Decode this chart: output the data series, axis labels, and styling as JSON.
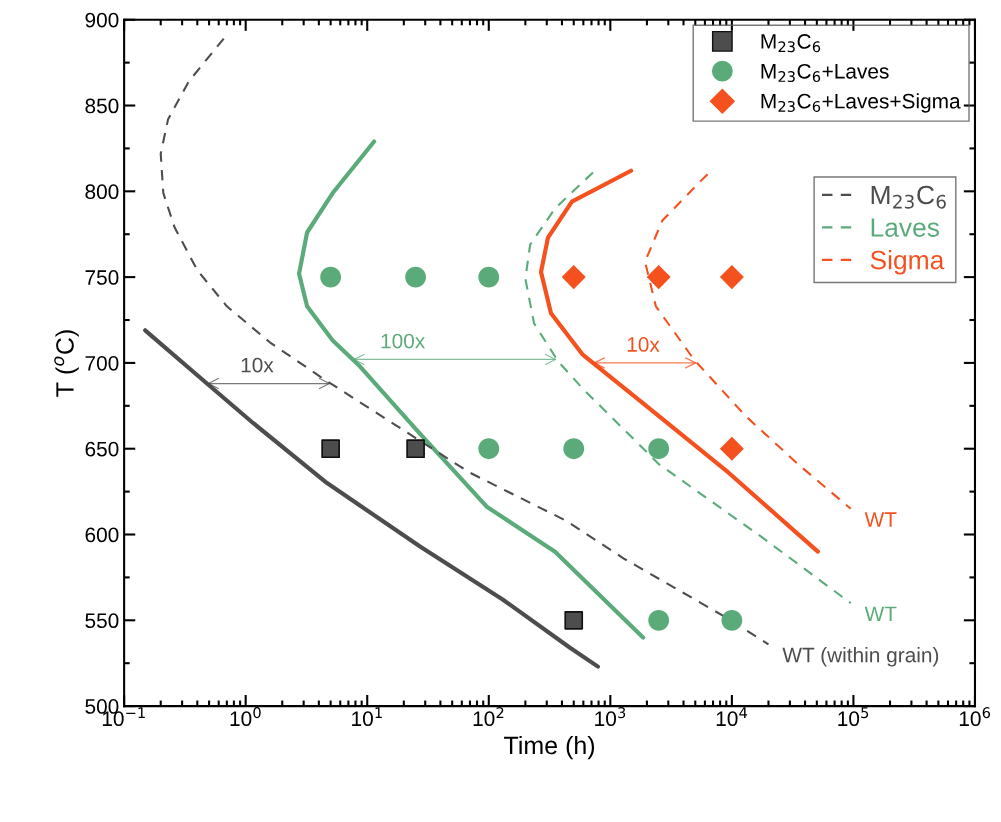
{
  "chart_data": {
    "type": "line",
    "xlabel": "Time (h)",
    "ylabel": "T ($^{o}$C)",
    "log": "x",
    "xlim": [
      0.1,
      1000000
    ],
    "xticks": [
      {
        "value": 0.1,
        "label": "10$^{−1}$"
      },
      {
        "value": 1,
        "label": "10$^{0}$"
      },
      {
        "value": 10,
        "label": "10$^{1}$"
      },
      {
        "value": 100,
        "label": "10$^{2}$"
      },
      {
        "value": 1000,
        "label": "10$^{3}$"
      },
      {
        "value": 10000,
        "label": "10$^{4}$"
      },
      {
        "value": 100000,
        "label": "10$^{5}$"
      },
      {
        "value": 1000000,
        "label": "10$^{6}$"
      }
    ],
    "ylim": [
      500,
      900
    ],
    "yticks": [
      500,
      550,
      600,
      650,
      700,
      750,
      800,
      850,
      900
    ],
    "grid": false,
    "legend": "top right",
    "series": [
      {
        "type": "scatter",
        "name": "M$_{23}$C$_{6}$",
        "color": "#4d4d4d",
        "marker": "square",
        "x": [
          5,
          25,
          500
        ],
        "values": [
          650,
          650,
          550
        ]
      },
      {
        "type": "scatter",
        "name": "M$_{23}$C$_{6}$+Laves",
        "color": "#5bab7a",
        "marker": "circle",
        "x": [
          5,
          25,
          100,
          100,
          500,
          2500,
          2500,
          10000
        ],
        "values": [
          750,
          750,
          750,
          650,
          650,
          650,
          550,
          550
        ]
      },
      {
        "type": "scatter",
        "name": "M$_{23}$C$_{6}$+Laves+Sigma",
        "color": "#f4511e",
        "marker": "diamond",
        "x": [
          500,
          2500,
          10000,
          10000
        ],
        "values": [
          750,
          750,
          750,
          650
        ]
      },
      {
        "color": "#4d4d4d",
        "line_style": "solid",
        "x": [
          0.149,
          0.48,
          1.15,
          4.67,
          27.2,
          131,
          466,
          791
        ],
        "values": [
          719,
          688,
          665,
          630,
          593,
          562,
          534,
          523
        ]
      },
      {
        "color": "#5bab7a",
        "line_style": "solid",
        "x": [
          11.4,
          5.2,
          3.2,
          2.75,
          3.2,
          5.2,
          8.7,
          27,
          97,
          351,
          1860
        ],
        "values": [
          829,
          799,
          776,
          752,
          733,
          713,
          698,
          659,
          616,
          590,
          540
        ]
      },
      {
        "color": "#f4511e",
        "line_style": "solid",
        "x": [
          1480,
          483,
          307,
          269,
          325,
          589,
          1820,
          9400,
          51000
        ],
        "values": [
          812,
          794,
          773,
          753,
          729,
          705,
          677,
          636,
          590
        ]
      },
      {
        "name": "M$_{23}$C$_{6}$",
        "color": "#4d4d4d",
        "line_style": "dashed",
        "x": [
          0.66,
          0.34,
          0.23,
          0.2,
          0.21,
          0.26,
          0.4,
          0.7,
          1.58,
          4.1,
          14.5,
          70,
          433,
          1290,
          8300,
          20000
        ],
        "values": [
          889,
          864,
          842,
          822,
          799,
          779,
          754,
          733,
          712,
          692,
          667,
          636,
          608,
          586,
          553,
          536
        ]
      },
      {
        "name": "Laves",
        "color": "#5bab7a",
        "line_style": "dashed",
        "x": [
          720,
          351,
          219,
          200,
          236,
          371,
          593,
          2510,
          18000,
          95000
        ],
        "values": [
          811,
          790,
          769,
          749,
          723,
          701,
          685,
          641,
          598,
          560
        ]
      },
      {
        "name": "Sigma",
        "color": "#f4511e",
        "line_style": "dashed",
        "x": [
          6300,
          2680,
          1930,
          2370,
          4870,
          13000,
          35000,
          95000
        ],
        "values": [
          810,
          783,
          759,
          733,
          702,
          669,
          641,
          615
        ]
      }
    ],
    "annotations": [
      {
        "text": "10x",
        "x": 0.47,
        "y": 688
      },
      {
        "text": "100x",
        "x": 7.6,
        "y": 702
      },
      {
        "text": "10x",
        "x": 600,
        "y": 700
      },
      {
        "text": "WT",
        "x": 95000,
        "y": 615
      },
      {
        "text": "WT",
        "x": 95000,
        "y": 560
      },
      {
        "text": "WT (within grain)",
        "x": 20000,
        "y": 536
      }
    ]
  }
}
